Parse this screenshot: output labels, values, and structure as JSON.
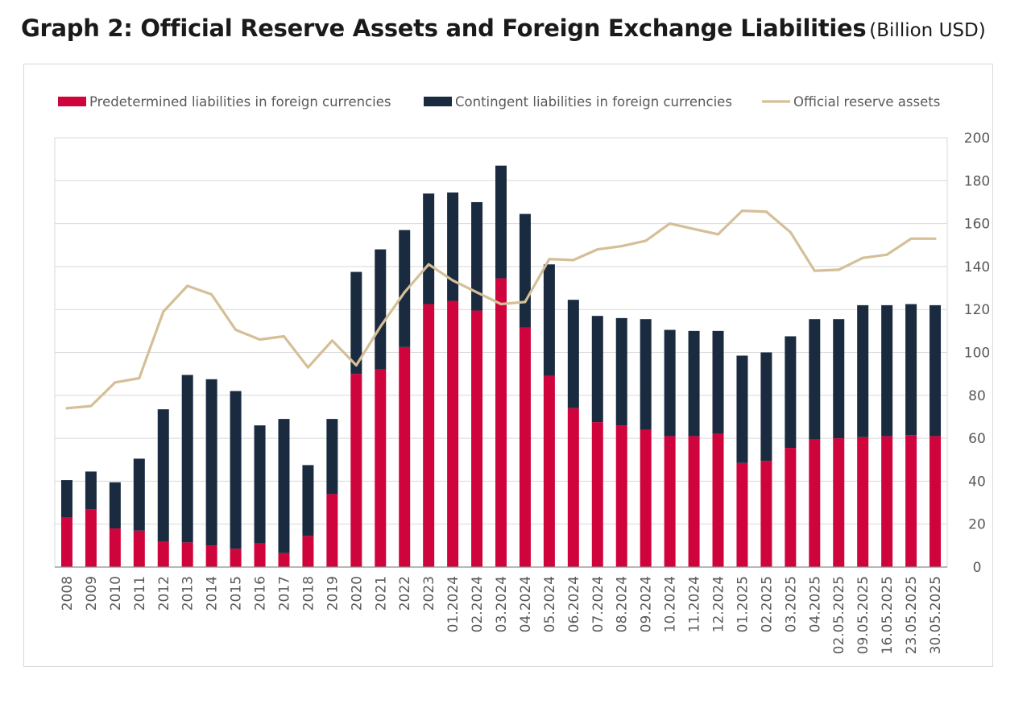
{
  "header": {
    "title": "Graph 2: Official Reserve Assets and Foreign Exchange Liabilities",
    "unit": "(Billion USD)"
  },
  "colors": {
    "predetermined": "#d0043c",
    "contingent": "#1a2b40",
    "reserves": "#d5bf97",
    "grid": "#d9d9d9",
    "axis_text": "#595959"
  },
  "chart_data": {
    "type": "bar",
    "stacked": true,
    "title": "Graph 2: Official Reserve Assets and Foreign Exchange Liabilities",
    "xlabel": "",
    "ylabel": "Billion USD",
    "ylim": [
      0,
      200
    ],
    "yticks": [
      0,
      20,
      40,
      60,
      80,
      100,
      120,
      140,
      160,
      180,
      200
    ],
    "y_axis_side": "right",
    "grid": true,
    "legend_position": "top",
    "categories": [
      "2008",
      "2009",
      "2010",
      "2011",
      "2012",
      "2013",
      "2014",
      "2015",
      "2016",
      "2017",
      "2018",
      "2019",
      "2020",
      "2021",
      "2022",
      "2023",
      "01.2024",
      "02.2024",
      "03.2024",
      "04.2024",
      "05.2024",
      "06.2024",
      "07.2024",
      "08.2024",
      "09.2024",
      "10.2024",
      "11.2024",
      "12.2024",
      "01.2025",
      "02.2025",
      "03.2025",
      "04.2025",
      "02.05.2025",
      "09.05.2025",
      "16.05.2025",
      "23.05.2025",
      "30.05.2025"
    ],
    "series": [
      {
        "name": "Predetermined liabilities in foreign currencies",
        "kind": "bar",
        "values": [
          23,
          27,
          18,
          17,
          12,
          11.5,
          10,
          8.5,
          11,
          6.5,
          14.5,
          34,
          90,
          92,
          102.5,
          122.5,
          124,
          119.5,
          134.5,
          111.5,
          89,
          74,
          67.5,
          66,
          64,
          61,
          61,
          62,
          48.5,
          49.5,
          55.5,
          59.5,
          60,
          60.5,
          61,
          61.5,
          61
        ]
      },
      {
        "name": "Contingent liabilities in foreign currencies",
        "kind": "bar",
        "values": [
          17.5,
          17.5,
          21.5,
          33.5,
          61.5,
          78,
          77.5,
          73.5,
          55,
          62.5,
          33,
          35,
          47.5,
          56,
          54.5,
          51.5,
          50.5,
          50.5,
          52.5,
          53,
          52,
          50.5,
          49.5,
          50,
          51.5,
          49.5,
          49,
          48,
          50,
          50.5,
          52,
          56,
          55.5,
          61.5,
          61,
          61,
          61
        ]
      },
      {
        "name": "Official reserve assets",
        "kind": "line",
        "values": [
          74,
          75,
          86,
          88,
          119,
          131,
          127,
          110.5,
          106,
          107.5,
          93,
          105.5,
          94,
          112,
          128,
          141,
          133.5,
          128,
          122.5,
          123.5,
          143.5,
          143,
          148,
          149.5,
          152,
          160,
          157.5,
          155,
          166,
          165.5,
          156,
          138,
          138.5,
          144,
          145.5,
          153,
          153
        ]
      }
    ]
  }
}
